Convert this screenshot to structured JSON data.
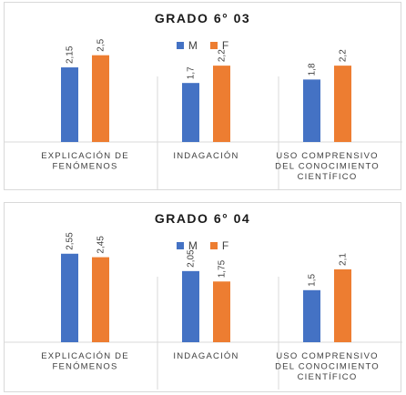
{
  "chart_data": [
    {
      "type": "bar",
      "title": "GRADO 6° 03",
      "categories": [
        [
          "EXPLICACIÓN DE",
          "FENÓMENOS"
        ],
        [
          "INDAGACIÓN"
        ],
        [
          "USO COMPRENSIVO",
          "DEL CONOCIMIENTO",
          "CIENTÍFICO"
        ]
      ],
      "series": [
        {
          "name": "M",
          "color": "#4472C4",
          "values": [
            2.15,
            1.7,
            1.8
          ],
          "labels": [
            "2,15",
            "1,7",
            "1,8"
          ]
        },
        {
          "name": "F",
          "color": "#ED7D31",
          "values": [
            2.5,
            2.2,
            2.2
          ],
          "labels": [
            "2,5",
            "2,2",
            "2,2"
          ]
        }
      ],
      "ylim": [
        0,
        3.2
      ],
      "legend": "top",
      "grid": false
    },
    {
      "type": "bar",
      "title": "GRADO 6° 04",
      "categories": [
        [
          "EXPLICACIÓN DE",
          "FENÓMENOS"
        ],
        [
          "INDAGACIÓN"
        ],
        [
          "USO COMPRENSIVO",
          "DEL CONOCIMIENTO",
          "CIENTÍFICO"
        ]
      ],
      "series": [
        {
          "name": "M",
          "color": "#4472C4",
          "values": [
            2.55,
            2.05,
            1.5
          ],
          "labels": [
            "2,55",
            "2,05",
            "1,5"
          ]
        },
        {
          "name": "F",
          "color": "#ED7D31",
          "values": [
            2.45,
            1.75,
            2.1
          ],
          "labels": [
            "2,45",
            "1,75",
            "2,1"
          ]
        }
      ],
      "ylim": [
        0,
        3.2
      ],
      "legend": "top",
      "grid": false
    }
  ]
}
